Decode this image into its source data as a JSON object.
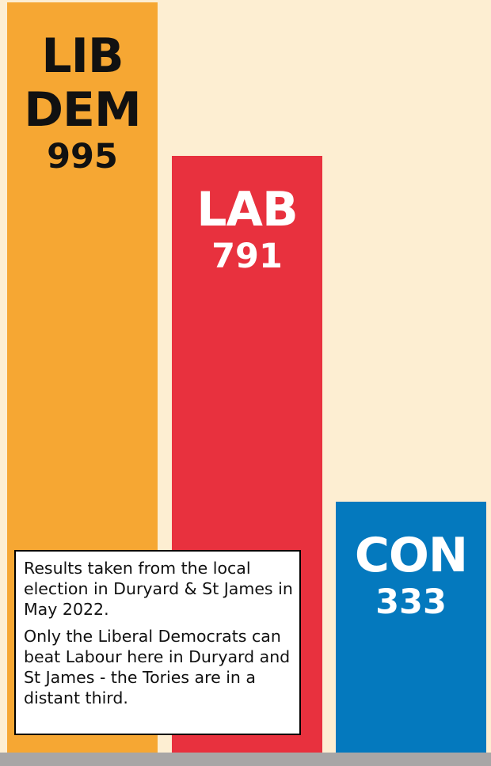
{
  "chart_data": {
    "type": "bar",
    "categories": [
      "LIB DEM",
      "LAB",
      "CON"
    ],
    "values": [
      995,
      791,
      333
    ],
    "colors": [
      "#f6a733",
      "#e8313e",
      "#0479be"
    ],
    "label_colors": [
      "#111111",
      "#ffffff",
      "#ffffff"
    ],
    "title": "",
    "xlabel": "",
    "ylabel": "",
    "ylim": [
      0,
      995
    ],
    "grid": false,
    "legend": "none"
  },
  "note": {
    "line1": "Results taken from the local election in Duryard & St James in May 2022.",
    "line2": "Only the Liberal Democrats can beat Labour here in Duryard and St James - the Tories are in a distant third."
  }
}
